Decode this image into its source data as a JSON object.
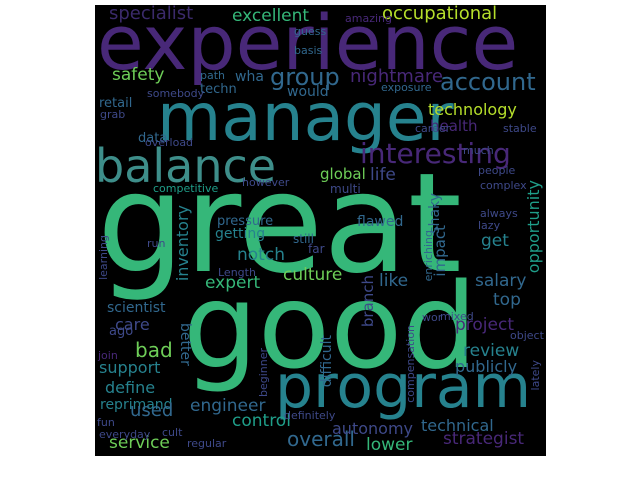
{
  "colors": {
    "background": "#000000",
    "page": "#ffffff",
    "palette": [
      "#440154",
      "#482878",
      "#3e4989",
      "#31688e",
      "#26828e",
      "#1f9e89",
      "#35b779",
      "#6ece58",
      "#b5de2b",
      "#fde725"
    ]
  },
  "words": [
    {
      "text": "great",
      "color": "#35b779"
    },
    {
      "text": "good",
      "color": "#35b779"
    },
    {
      "text": "experience",
      "color": "#482878"
    },
    {
      "text": "manager",
      "color": "#26828e"
    },
    {
      "text": "program",
      "color": "#26828e"
    },
    {
      "text": "balance",
      "color": "#3e8e8a"
    },
    {
      "text": "interesting",
      "color": "#482878"
    },
    {
      "text": "group",
      "color": "#31688e"
    },
    {
      "text": "account",
      "color": "#31688e"
    },
    {
      "text": "nightmare",
      "color": "#482878"
    },
    {
      "text": "occupational",
      "color": "#b5de2b"
    },
    {
      "text": "excellent",
      "color": "#35b779"
    },
    {
      "text": "specialist",
      "color": "#3b2a6b"
    },
    {
      "text": "safety",
      "color": "#6ece58"
    },
    {
      "text": "technology",
      "color": "#b5de2b"
    },
    {
      "text": "health",
      "color": "#482878"
    },
    {
      "text": "life",
      "color": "#3e4989"
    },
    {
      "text": "global",
      "color": "#6ece58"
    },
    {
      "text": "opportunity",
      "color": "#1f9e89"
    },
    {
      "text": "get",
      "color": "#26828e"
    },
    {
      "text": "salary",
      "color": "#31688e"
    },
    {
      "text": "culture",
      "color": "#6ece58"
    },
    {
      "text": "notch",
      "color": "#26828e"
    },
    {
      "text": "expert",
      "color": "#35b779"
    },
    {
      "text": "inventory",
      "color": "#26828e"
    },
    {
      "text": "like",
      "color": "#31688e"
    },
    {
      "text": "top",
      "color": "#31688e"
    },
    {
      "text": "project",
      "color": "#482878"
    },
    {
      "text": "review",
      "color": "#26828e"
    },
    {
      "text": "publicly",
      "color": "#31688e"
    },
    {
      "text": "bad",
      "color": "#6ece58"
    },
    {
      "text": "care",
      "color": "#3e4989"
    },
    {
      "text": "support",
      "color": "#26828e"
    },
    {
      "text": "define",
      "color": "#26828e"
    },
    {
      "text": "reprimand",
      "color": "#26828e"
    },
    {
      "text": "used",
      "color": "#31688e"
    },
    {
      "text": "engineer",
      "color": "#31688e"
    },
    {
      "text": "control",
      "color": "#1f9e89"
    },
    {
      "text": "overall",
      "color": "#31688e"
    },
    {
      "text": "autonomy",
      "color": "#3e4989"
    },
    {
      "text": "technical",
      "color": "#31688e"
    },
    {
      "text": "lower",
      "color": "#35b779"
    },
    {
      "text": "strategist",
      "color": "#482878"
    },
    {
      "text": "service",
      "color": "#6ece58"
    },
    {
      "text": "retail",
      "color": "#31688e"
    },
    {
      "text": "techn",
      "color": "#31688e"
    },
    {
      "text": "wha",
      "color": "#31688e"
    },
    {
      "text": "would",
      "color": "#31688e"
    },
    {
      "text": "exposure",
      "color": "#31688e"
    },
    {
      "text": "amazing",
      "color": "#482878"
    },
    {
      "text": "guess",
      "color": "#31688e"
    },
    {
      "text": "basis",
      "color": "#31688e"
    },
    {
      "text": "path",
      "color": "#31688e"
    },
    {
      "text": "somebody",
      "color": "#3e4989"
    },
    {
      "text": "grab",
      "color": "#3e4989"
    },
    {
      "text": "data",
      "color": "#31688e"
    },
    {
      "text": "overload",
      "color": "#3e4989"
    },
    {
      "text": "competitive",
      "color": "#1f9e89"
    },
    {
      "text": "however",
      "color": "#3e4989"
    },
    {
      "text": "multi",
      "color": "#3e4989"
    },
    {
      "text": "career",
      "color": "#3e4989"
    },
    {
      "text": "stable",
      "color": "#3e4989"
    },
    {
      "text": "much",
      "color": "#3e4989"
    },
    {
      "text": "people",
      "color": "#3e4989"
    },
    {
      "text": "complex",
      "color": "#3e4989"
    },
    {
      "text": "always",
      "color": "#3e4989"
    },
    {
      "text": "lazy",
      "color": "#3e4989"
    },
    {
      "text": "pressure",
      "color": "#31688e"
    },
    {
      "text": "getting",
      "color": "#26828e"
    },
    {
      "text": "flawed",
      "color": "#31688e"
    },
    {
      "text": "shaky",
      "color": "#31688e"
    },
    {
      "text": "enriching",
      "color": "#31688e"
    },
    {
      "text": "impact",
      "color": "#31688e"
    },
    {
      "text": "still",
      "color": "#31688e"
    },
    {
      "text": "far",
      "color": "#3e4989"
    },
    {
      "text": "branch",
      "color": "#3e4989"
    },
    {
      "text": "Length",
      "color": "#3e4989"
    },
    {
      "text": "learning",
      "color": "#3e4989"
    },
    {
      "text": "run",
      "color": "#3e4989"
    },
    {
      "text": "scientist",
      "color": "#31688e"
    },
    {
      "text": "ago",
      "color": "#3e4989"
    },
    {
      "text": "join",
      "color": "#482878"
    },
    {
      "text": "better",
      "color": "#31688e"
    },
    {
      "text": "beginner",
      "color": "#3e4989"
    },
    {
      "text": "difficult",
      "color": "#31688e"
    },
    {
      "text": "compensation",
      "color": "#3e4989"
    },
    {
      "text": "mixed",
      "color": "#3e4989"
    },
    {
      "text": "wor",
      "color": "#3e4989"
    },
    {
      "text": "object",
      "color": "#3e4989"
    },
    {
      "text": "lately",
      "color": "#3e4989"
    },
    {
      "text": "definitely",
      "color": "#3e4989"
    },
    {
      "text": "fun",
      "color": "#3e4989"
    },
    {
      "text": "cult",
      "color": "#3e4989"
    },
    {
      "text": "everyday",
      "color": "#3e4989"
    },
    {
      "text": "regular",
      "color": "#3e4989"
    }
  ]
}
